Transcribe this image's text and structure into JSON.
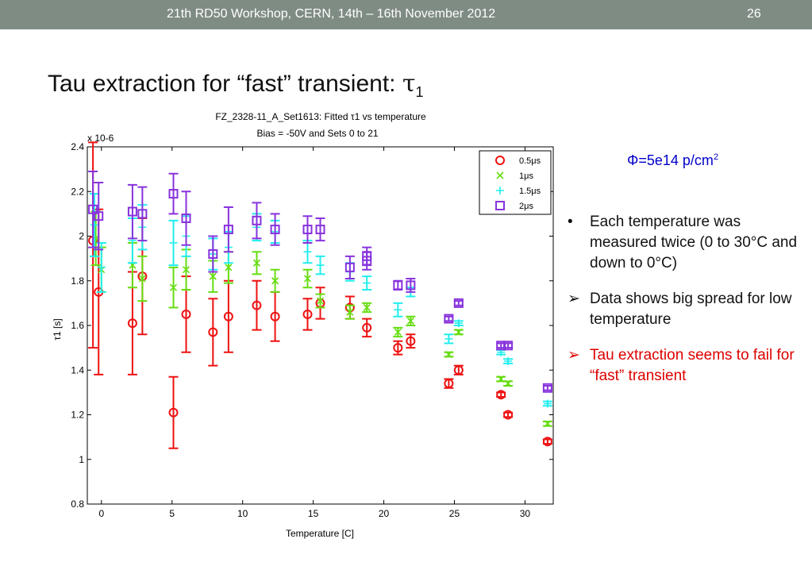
{
  "header": {
    "event": "21th  RD50 Workshop, CERN, 14th – 16th November 2012",
    "page": "26"
  },
  "slide": {
    "title": "Tau extraction for “fast” transient: ",
    "title_symbol": "τ",
    "title_subscript": "1",
    "fluence": "Φ=5e14 p/cm",
    "fluence_sup": "2",
    "bullets": [
      {
        "marker": "•",
        "text": "Each temperature was measured twice (0 to 30°C and down to 0°C)",
        "color": "#111111"
      },
      {
        "marker": "➢",
        "text": "Data shows big spread for low temperature",
        "color": "#111111"
      },
      {
        "marker": "➢",
        "text": "Tau extraction seems to fail for “fast” transient",
        "color": "#dd0000"
      }
    ]
  },
  "chart_data": {
    "type": "scatter",
    "title": "FZ_2328-11_A_Set1613: Fitted τ1 vs temperature",
    "subtitle": "Bias = -50V and Sets 0 to 21",
    "xlabel": "Temperature [C]",
    "ylabel": "τ1 [s]",
    "y_exponent": "x 10-6",
    "xlim": [
      -1,
      32
    ],
    "ylim": [
      0.8,
      2.4
    ],
    "xticks": [
      0,
      5,
      10,
      15,
      20,
      25,
      30
    ],
    "yticks": [
      0.8,
      1,
      1.2,
      1.4,
      1.6,
      1.8,
      2,
      2.2,
      2.4
    ],
    "ytick_labels": [
      "0.8",
      "1",
      "1.2",
      "1.4",
      "1.6",
      "1.8",
      "2",
      "2.2",
      "2.4"
    ],
    "grid": false,
    "legend_position": "top-right",
    "series": [
      {
        "name": "0.5μs",
        "marker": "circle",
        "color": "#ee1111",
        "x": [
          -0.6,
          -0.2,
          2.2,
          2.9,
          5.1,
          6.0,
          7.9,
          9.0,
          11.0,
          12.3,
          14.6,
          15.5,
          17.6,
          18.8,
          21.0,
          21.9,
          24.6,
          25.3,
          28.3,
          28.8,
          31.6
        ],
        "y": [
          1.98,
          1.75,
          1.61,
          1.82,
          1.21,
          1.65,
          1.57,
          1.64,
          1.69,
          1.64,
          1.65,
          1.7,
          1.68,
          1.59,
          1.5,
          1.53,
          1.34,
          1.4,
          1.29,
          1.2,
          1.08
        ],
        "err": [
          0.48,
          0.37,
          0.23,
          0.26,
          0.16,
          0.17,
          0.15,
          0.16,
          0.11,
          0.11,
          0.07,
          0.07,
          0.05,
          0.04,
          0.03,
          0.03,
          0.02,
          0.02,
          0.01,
          0.01,
          0.01
        ]
      },
      {
        "name": "1μs",
        "marker": "x",
        "color": "#66dd11",
        "x": [
          -0.4,
          0.0,
          2.2,
          2.9,
          5.1,
          6.0,
          7.9,
          9.0,
          11.0,
          12.3,
          14.6,
          15.5,
          17.6,
          18.8,
          21.0,
          21.9,
          24.6,
          25.3,
          28.3,
          28.8,
          31.6
        ],
        "y": [
          1.99,
          1.85,
          1.87,
          1.81,
          1.77,
          1.85,
          1.82,
          1.86,
          1.88,
          1.8,
          1.81,
          1.71,
          1.66,
          1.68,
          1.57,
          1.62,
          1.47,
          1.57,
          1.36,
          1.34,
          1.16
        ],
        "err": [
          0.12,
          0.1,
          0.1,
          0.1,
          0.09,
          0.09,
          0.07,
          0.07,
          0.05,
          0.05,
          0.04,
          0.03,
          0.03,
          0.02,
          0.02,
          0.02,
          0.01,
          0.01,
          0.01,
          0.01,
          0.01
        ]
      },
      {
        "name": "1.5μs",
        "marker": "plus",
        "color": "#22eeee",
        "x": [
          -0.5,
          0.0,
          2.2,
          2.9,
          5.1,
          6.0,
          7.9,
          9.0,
          11.0,
          12.3,
          14.6,
          15.5,
          17.6,
          18.8,
          21.0,
          21.9,
          24.6,
          25.3,
          28.3,
          28.8,
          31.6
        ],
        "y": [
          2.05,
          1.86,
          1.98,
          2.04,
          1.97,
          2.0,
          1.92,
          1.95,
          2.04,
          2.02,
          1.93,
          1.87,
          1.84,
          1.79,
          1.67,
          1.75,
          1.54,
          1.61,
          1.48,
          1.44,
          1.25
        ],
        "err": [
          0.14,
          0.11,
          0.1,
          0.1,
          0.1,
          0.09,
          0.07,
          0.07,
          0.06,
          0.05,
          0.05,
          0.04,
          0.04,
          0.03,
          0.03,
          0.02,
          0.02,
          0.01,
          0.01,
          0.01,
          0.01
        ]
      },
      {
        "name": "2μs",
        "marker": "square",
        "color": "#8833dd",
        "x": [
          -0.6,
          -0.2,
          2.2,
          2.9,
          5.1,
          6.0,
          7.9,
          9.0,
          11.0,
          12.3,
          14.6,
          15.5,
          17.6,
          18.8,
          18.8,
          21.0,
          21.9,
          24.6,
          25.3,
          28.3,
          28.8,
          31.6
        ],
        "y": [
          2.12,
          2.09,
          2.11,
          2.1,
          2.19,
          2.08,
          1.92,
          2.03,
          2.07,
          2.03,
          2.03,
          2.03,
          1.86,
          1.91,
          1.89,
          1.78,
          1.78,
          1.63,
          1.7,
          1.51,
          1.51,
          1.32
        ],
        "err": [
          0.17,
          0.15,
          0.12,
          0.12,
          0.09,
          0.12,
          0.08,
          0.1,
          0.08,
          0.07,
          0.06,
          0.05,
          0.05,
          0.04,
          0.04,
          0.02,
          0.03,
          0.01,
          0.01,
          0.01,
          0.01,
          0.01
        ]
      }
    ]
  }
}
